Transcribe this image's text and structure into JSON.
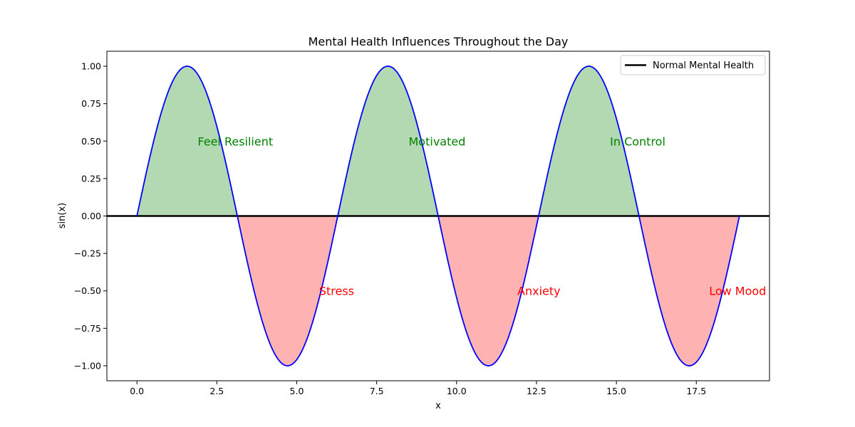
{
  "chart_data": {
    "type": "area",
    "title": "Mental Health Influences Throughout the Day",
    "xlabel": "x",
    "ylabel": "sin(x)",
    "xlim": [
      -0.94,
      19.79
    ],
    "ylim": [
      -1.1,
      1.1
    ],
    "x_ticks": [
      0.0,
      2.5,
      5.0,
      7.5,
      10.0,
      12.5,
      15.0,
      17.5
    ],
    "x_tick_labels": [
      "0.0",
      "2.5",
      "5.0",
      "7.5",
      "10.0",
      "12.5",
      "15.0",
      "17.5"
    ],
    "y_ticks": [
      1.0,
      0.75,
      0.5,
      0.25,
      0.0,
      -0.25,
      -0.5,
      -0.75,
      -1.0
    ],
    "y_tick_labels": [
      "1.00",
      "0.75",
      "0.50",
      "0.25",
      "0.00",
      "−0.25",
      "−0.50",
      "−0.75",
      "−1.00"
    ],
    "grid": false,
    "series": [
      {
        "function": "sin",
        "x_range": [
          0,
          18.85
        ],
        "color": "#0000ff"
      }
    ],
    "reference_line": {
      "y": 0,
      "name": "Normal Mental Health",
      "color": "#000000"
    },
    "fill_positive_color": "#008000",
    "fill_negative_color": "#ff0000",
    "fill_alpha": 0.3,
    "legend": {
      "placement": "top-right",
      "entries": [
        "Normal Mental Health"
      ]
    },
    "annotations": [
      {
        "text": "Feel Resilient",
        "x": 1.9,
        "y": 0.5,
        "color": "#008000"
      },
      {
        "text": "Motivated",
        "x": 8.5,
        "y": 0.5,
        "color": "#008000"
      },
      {
        "text": "In Control",
        "x": 14.8,
        "y": 0.5,
        "color": "#008000"
      },
      {
        "text": "Stress",
        "x": 5.7,
        "y": -0.5,
        "color": "#ff0000"
      },
      {
        "text": "Anxiety",
        "x": 11.9,
        "y": -0.5,
        "color": "#ff0000"
      },
      {
        "text": "Low Mood",
        "x": 17.9,
        "y": -0.5,
        "color": "#ff0000"
      }
    ]
  }
}
